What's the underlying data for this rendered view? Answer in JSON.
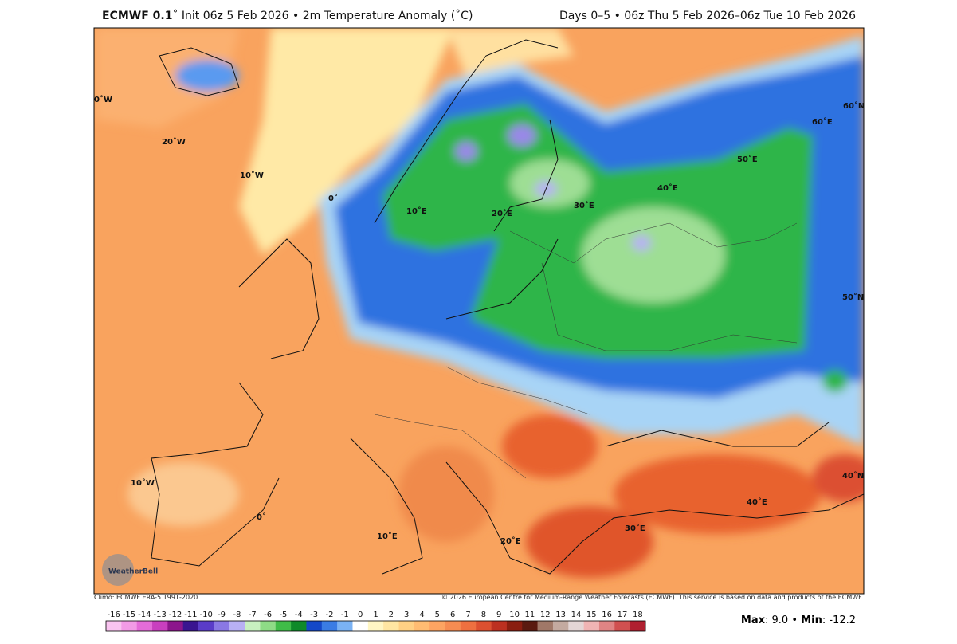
{
  "header": {
    "model": "ECMWF 0.1",
    "title": "˚ Init 06z 5 Feb 2026 • 2m Temperature Anomaly (˚C)",
    "period": "Days 0–5 • 06z Thu 5 Feb 2026–06z Tue 10 Feb 2026"
  },
  "map": {
    "logo": "WeatherBell",
    "graticule_labels": [
      "0˚W",
      "20˚W",
      "10˚W",
      "0˚",
      "10˚E",
      "20˚E",
      "30˚E",
      "40˚E",
      "50˚E",
      "60˚E",
      "60˚N",
      "50˚N",
      "40˚N",
      "10˚W",
      "0˚",
      "10˚E",
      "20˚E",
      "30˚E",
      "40˚E"
    ]
  },
  "footer": {
    "climo": "Climo: ECMWF ERA-5 1991-2020",
    "copyright": "© 2026 European Centre for Medium-Range Weather Forecasts (ECMWF). This service is based on data and products of the ECMWF."
  },
  "colorbar": {
    "labels": [
      -16,
      -15,
      -14,
      -13,
      -12,
      -11,
      -10,
      -9,
      -8,
      -7,
      -6,
      -5,
      -4,
      -3,
      -2,
      -1,
      0,
      1,
      2,
      3,
      4,
      5,
      6,
      7,
      8,
      9,
      10,
      11,
      12,
      13,
      14,
      15,
      16,
      17,
      18
    ],
    "colors": [
      "#f9c4f0",
      "#f29be6",
      "#e46cd8",
      "#c93fbf",
      "#8c168c",
      "#3a1590",
      "#5a3cc8",
      "#8a78e4",
      "#b8b0f4",
      "#c8f0c0",
      "#8edc86",
      "#3fbc48",
      "#0f8a2a",
      "#1448c8",
      "#3a7ce4",
      "#7ab2f4",
      "#ffffff",
      "#fff6c4",
      "#ffe6a2",
      "#ffd084",
      "#ffbc72",
      "#fda462",
      "#f68c52",
      "#ee7040",
      "#dc5030",
      "#bc3020",
      "#8a1e10",
      "#5a1a10",
      "#a07868",
      "#c4aaa0",
      "#e4d6d6",
      "#f0b4b4",
      "#e08484",
      "#d05050",
      "#b02030"
    ]
  },
  "stats": {
    "max_label": "Max",
    "separator": ":",
    "max_value": "9.0",
    "divider": "•",
    "min_label": "Min",
    "min_value": "-12.2"
  }
}
